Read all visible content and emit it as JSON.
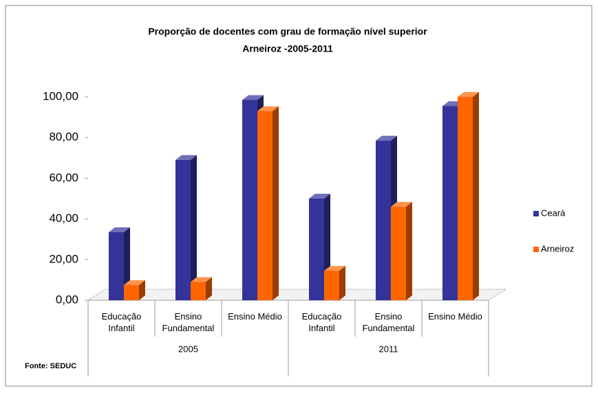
{
  "chart_data": {
    "type": "bar3d",
    "title": "Proporção de docentes com grau de formação nível superior",
    "subtitle": "Arneiroz -2005-2011",
    "categories": [
      "Educação Infantil",
      "Ensino Fundamental",
      "Ensino Médio",
      "Educação Infantil",
      "Ensino Fundamental",
      "Ensino Médio"
    ],
    "groups": [
      "2005",
      "2011"
    ],
    "series": [
      {
        "name": "Ceará",
        "color": "#333399",
        "values": [
          33.5,
          69,
          98.5,
          50,
          78.5,
          95.5
        ]
      },
      {
        "name": "Arneiroz",
        "color": "#ff6600",
        "values": [
          7.5,
          9,
          93,
          14.5,
          46,
          100
        ]
      }
    ],
    "ylim": [
      0,
      100
    ],
    "yticks": [
      {
        "value": 0,
        "label": "0,00"
      },
      {
        "value": 20,
        "label": "20,00"
      },
      {
        "value": 40,
        "label": "40,00"
      },
      {
        "value": 60,
        "label": "60,00"
      },
      {
        "value": 80,
        "label": "80,00"
      },
      {
        "value": 100,
        "label": "100,00"
      }
    ],
    "grid": false,
    "legend": "right",
    "source": "Fonte: SEDUC"
  }
}
